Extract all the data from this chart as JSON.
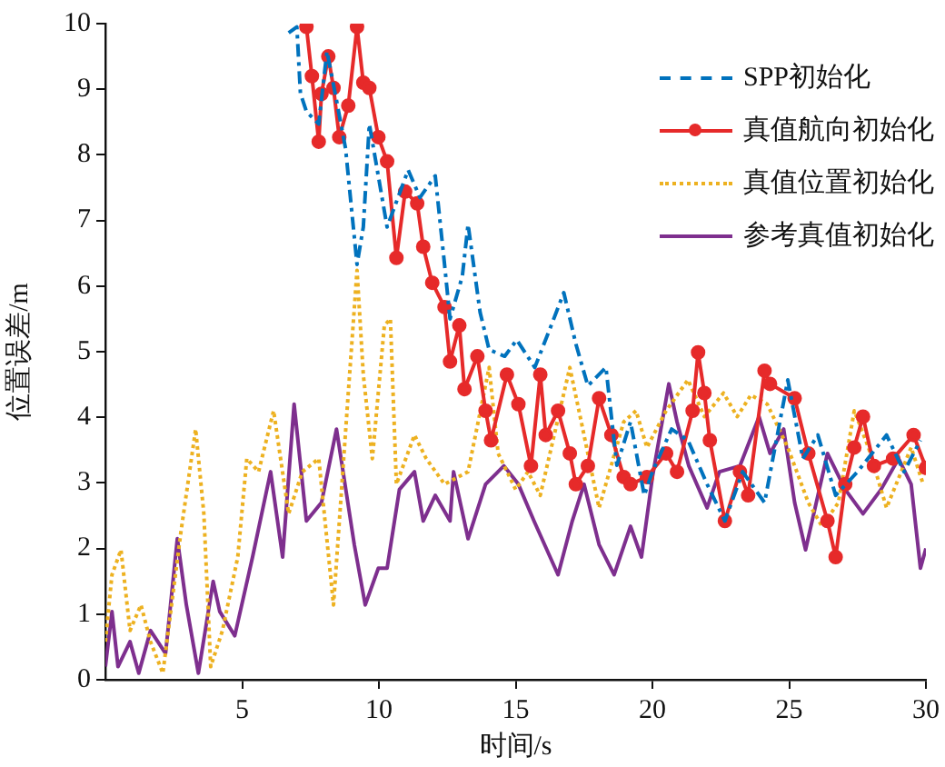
{
  "chart_data": {
    "type": "line",
    "xlabel": "时间/s",
    "ylabel": "位置误差/m",
    "xlim": [
      0,
      30
    ],
    "xticks": [
      5,
      10,
      15,
      20,
      25,
      30
    ],
    "ylim": [
      0,
      10
    ],
    "yticks": [
      0,
      1,
      2,
      3,
      4,
      5,
      6,
      7,
      8,
      9,
      10
    ],
    "grid": false,
    "legend": "top right",
    "series": [
      {
        "name": "SPP初始化",
        "color": "#0072bd",
        "line_style": "dashed",
        "marker": "none",
        "x": [
          6.7,
          7.0,
          7.13,
          7.35,
          7.8,
          8.1,
          8.45,
          8.78,
          9.2,
          9.43,
          9.65,
          10.3,
          11.07,
          11.5,
          12.06,
          12.4,
          12.6,
          13.05,
          13.26,
          13.7,
          14.03,
          14.6,
          15.04,
          15.7,
          16.3,
          16.76,
          17.2,
          17.64,
          18.3,
          18.7,
          19.2,
          19.7,
          20.0,
          20.7,
          21.3,
          22.0,
          22.65,
          23.3,
          24.1,
          24.95,
          25.5,
          26.05,
          26.7,
          27.5,
          28.56,
          29.2,
          29.8
        ],
        "values": [
          9.86,
          9.95,
          8.94,
          8.66,
          8.47,
          9.58,
          8.83,
          8.1,
          6.33,
          6.9,
          8.47,
          6.9,
          7.77,
          7.35,
          7.68,
          6.33,
          5.5,
          6.15,
          6.94,
          5.6,
          5.03,
          4.93,
          5.18,
          4.76,
          5.4,
          5.9,
          5.12,
          4.48,
          4.76,
          3.27,
          3.93,
          2.81,
          3.17,
          3.82,
          3.65,
          2.98,
          2.42,
          3.17,
          2.7,
          4.57,
          3.37,
          3.73,
          2.81,
          3.17,
          3.73,
          3.17,
          3.65
        ]
      },
      {
        "name": "真值航向初始化",
        "color": "#e62a2a",
        "line_style": "solid",
        "marker": "circle",
        "x": [
          7.35,
          7.55,
          7.8,
          7.9,
          8.15,
          8.34,
          8.55,
          8.88,
          9.2,
          9.43,
          9.65,
          9.98,
          10.3,
          10.64,
          10.96,
          11.4,
          11.62,
          11.95,
          12.4,
          12.6,
          12.94,
          13.13,
          13.6,
          13.9,
          14.1,
          14.68,
          15.1,
          15.56,
          15.9,
          16.1,
          16.55,
          16.98,
          17.2,
          17.64,
          18.05,
          18.5,
          18.95,
          19.2,
          19.8,
          20.5,
          20.9,
          21.47,
          21.67,
          21.9,
          22.1,
          22.65,
          23.2,
          23.5,
          24.1,
          24.3,
          25.2,
          25.7,
          26.4,
          26.7,
          27.05,
          27.38,
          27.7,
          28.1,
          28.8,
          29.55,
          30
        ],
        "values": [
          9.95,
          9.2,
          8.2,
          8.93,
          9.5,
          9.02,
          8.27,
          8.75,
          9.95,
          9.1,
          9.02,
          8.27,
          7.9,
          6.43,
          7.44,
          7.26,
          6.6,
          6.05,
          5.68,
          4.85,
          5.4,
          4.43,
          4.93,
          4.1,
          3.65,
          4.65,
          4.2,
          3.26,
          4.65,
          3.73,
          4.1,
          3.45,
          2.98,
          3.26,
          4.29,
          3.73,
          3.09,
          2.98,
          3.09,
          3.45,
          3.17,
          4.1,
          4.99,
          4.37,
          3.65,
          2.42,
          3.17,
          2.81,
          4.71,
          4.51,
          4.29,
          3.45,
          2.42,
          1.87,
          2.98,
          3.54,
          4.01,
          3.26,
          3.37,
          3.73,
          3.23
        ]
      },
      {
        "name": "真值位置初始化",
        "color": "#edb120",
        "line_style": "dotted",
        "marker": "none",
        "x": [
          0,
          0.24,
          0.57,
          0.9,
          1.3,
          1.65,
          2.1,
          2.3,
          2.76,
          3.3,
          3.6,
          3.85,
          4.28,
          4.84,
          5.17,
          5.6,
          6.15,
          6.7,
          7.2,
          7.8,
          8.34,
          8.88,
          9.2,
          9.43,
          9.76,
          10.2,
          10.42,
          10.64,
          11.3,
          11.73,
          12.4,
          13.26,
          14.03,
          14.36,
          15.0,
          15.45,
          15.9,
          16.98,
          17.4,
          18.05,
          18.95,
          19.4,
          19.8,
          20.5,
          21.3,
          21.9,
          22.6,
          23.1,
          23.6,
          24.2,
          24.95,
          25.7,
          26.2,
          26.8,
          27.38,
          27.9,
          28.56,
          29.46,
          29.9
        ],
        "values": [
          0.58,
          1.6,
          1.98,
          0.75,
          1.14,
          0.58,
          0.1,
          0.75,
          2.25,
          3.82,
          2.53,
          0.2,
          0.75,
          1.87,
          3.37,
          3.17,
          4.1,
          2.53,
          3.17,
          3.37,
          1.14,
          4.37,
          6.24,
          4.65,
          3.37,
          5.4,
          5.5,
          2.98,
          3.73,
          3.37,
          2.98,
          3.17,
          4.76,
          3.45,
          2.9,
          3.17,
          2.81,
          4.76,
          3.93,
          2.62,
          3.93,
          4.1,
          3.54,
          4.1,
          4.57,
          4.01,
          4.37,
          4.01,
          4.34,
          4.2,
          3.54,
          2.7,
          2.34,
          2.7,
          4.1,
          3.54,
          2.62,
          3.54,
          2.98
        ]
      },
      {
        "name": "参考真值初始化",
        "color": "#7e2f8e",
        "line_style": "solid",
        "marker": "none",
        "x": [
          0,
          0.24,
          0.46,
          0.9,
          1.22,
          1.65,
          2.2,
          2.63,
          2.96,
          3.4,
          3.94,
          4.18,
          4.73,
          5.38,
          6.04,
          6.48,
          6.9,
          7.35,
          7.9,
          8.45,
          9.1,
          9.5,
          9.98,
          10.3,
          10.75,
          11.3,
          11.62,
          12.06,
          12.6,
          12.73,
          13.26,
          13.9,
          14.57,
          15.1,
          15.67,
          16.55,
          17.07,
          17.5,
          18.05,
          18.6,
          19.2,
          19.6,
          20.0,
          20.6,
          20.9,
          21.33,
          22.0,
          22.45,
          23.2,
          23.9,
          24.3,
          24.8,
          25.2,
          25.6,
          26.4,
          27.05,
          27.7,
          28.36,
          29.0,
          29.46,
          29.8,
          30
        ],
        "values": [
          0.2,
          1.04,
          0.2,
          0.58,
          0.1,
          0.75,
          0.4,
          2.15,
          1.14,
          0.1,
          1.5,
          1.04,
          0.67,
          1.87,
          3.17,
          1.87,
          4.2,
          2.42,
          2.7,
          3.82,
          2.06,
          1.14,
          1.7,
          1.7,
          2.9,
          3.17,
          2.42,
          2.81,
          2.42,
          3.17,
          2.15,
          2.98,
          3.26,
          2.98,
          2.42,
          1.6,
          2.42,
          2.98,
          2.06,
          1.6,
          2.34,
          1.87,
          3.09,
          4.51,
          3.93,
          3.26,
          2.62,
          3.17,
          3.26,
          4.01,
          3.45,
          3.82,
          2.7,
          1.98,
          3.45,
          2.9,
          2.53,
          2.9,
          3.37,
          2.98,
          1.7,
          2.0
        ]
      }
    ]
  }
}
